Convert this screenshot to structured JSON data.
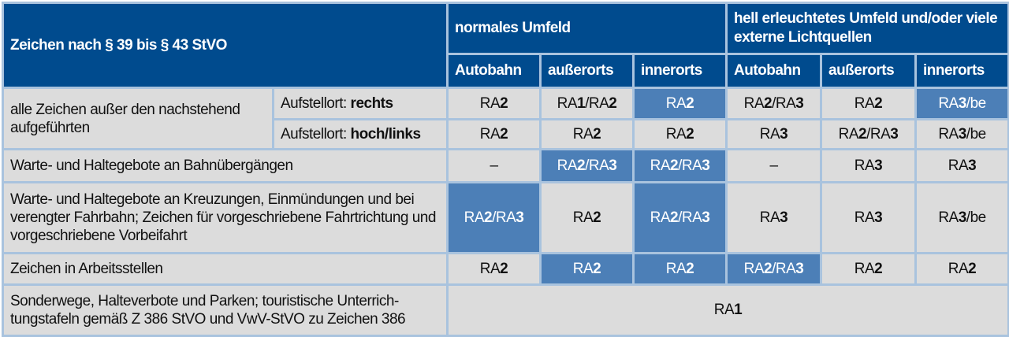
{
  "header": {
    "title": "Zeichen nach § 39 bis § 43 StVO",
    "group1": "normales Umfeld",
    "group2": "hell erleuchtetes Umfeld und/oder viele externe Lichtquellen",
    "columns": [
      "Autobahn",
      "außerorts",
      "innerorts",
      "Autobahn",
      "außerorts",
      "innerorts"
    ]
  },
  "highlight_color": "#4c7fb7",
  "rows": [
    {
      "label": "alle Zeichen außer den nachstehend aufgeführten",
      "sub_prefix": "Aufstellort: ",
      "sub_bold": "rechts",
      "cells": [
        "RA2",
        "RA1/RA2",
        "RA2",
        "RA2/RA3",
        "RA2",
        "RA3/be"
      ],
      "highlight": [
        false,
        false,
        true,
        false,
        false,
        true
      ]
    },
    {
      "sub_prefix": "Aufstellort: ",
      "sub_bold": "hoch/links",
      "cells": [
        "RA2",
        "RA2",
        "RA2",
        "RA3",
        "RA2/RA3",
        "RA3/be"
      ],
      "highlight": [
        false,
        false,
        false,
        false,
        false,
        false
      ]
    },
    {
      "label": "Warte- und Haltegebote an Bahnübergängen",
      "cells": [
        "–",
        "RA2/RA3",
        "RA2/RA3",
        "–",
        "RA3",
        "RA3"
      ],
      "highlight": [
        false,
        true,
        true,
        false,
        false,
        false
      ]
    },
    {
      "label": "Warte- und Haltegebote an Kreuzungen, Einmündungen und bei verengter Fahrbahn; Zeichen für vorgeschriebene Fahrtrichtung und vorgeschriebene Vorbeifahrt",
      "cells": [
        "RA2/RA3",
        "RA2",
        "RA2/RA3",
        "RA3",
        "RA3",
        "RA3/be"
      ],
      "highlight": [
        true,
        false,
        true,
        false,
        false,
        false
      ]
    },
    {
      "label": "Zeichen in Arbeitsstellen",
      "cells": [
        "RA2",
        "RA2",
        "RA2",
        "RA2/RA3",
        "RA2",
        "RA2"
      ],
      "highlight": [
        false,
        true,
        true,
        true,
        false,
        false
      ]
    },
    {
      "label": "Sonderwege, Halteverbote und Parken; touristische Unterrich­tungstafeln gemäß Z 386 StVO und VwV-StVO zu Zeichen 386",
      "cells": [
        "RA1"
      ],
      "highlight": [
        false
      ]
    }
  ]
}
